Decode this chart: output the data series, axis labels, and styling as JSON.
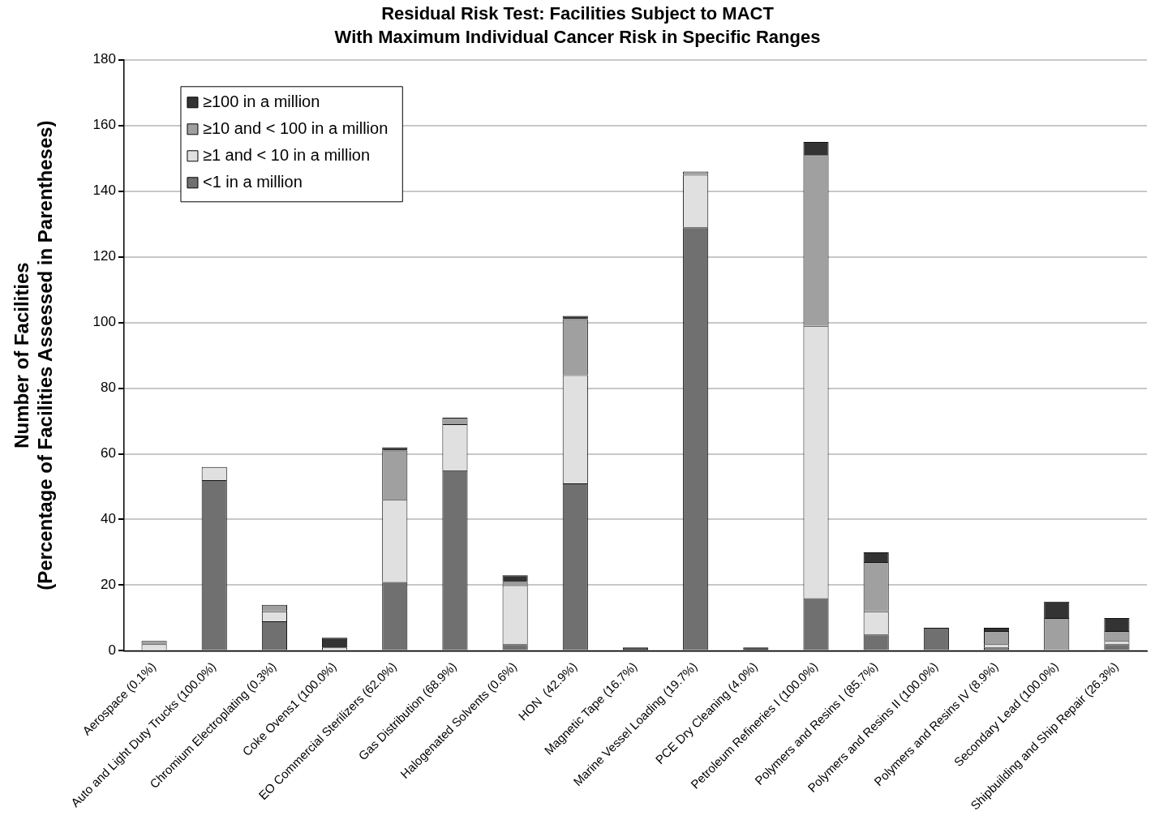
{
  "chart_data": {
    "type": "bar",
    "title": "Residual Risk Test: Facilities Subject to MACT",
    "subtitle": "With Maximum Individual Cancer Risk in Specific Ranges",
    "ylabel": "Number of Facilities\n(Percentage of Facilities Assessed in Parentheses)",
    "categories": [
      "Aerospace (0.1%)",
      "Auto and Light Duty Trucks (100.0%)",
      "Chromium Electroplating (0.3%)",
      "Coke Ovens1 (100.0%)",
      "EO Commercial Sterilizers (62.0%)",
      "Gas Distribution (68.9%)",
      "Halogenated Solvents (0.6%)",
      "HON  (42.9%)",
      "Magnetic Tape (16.7%)",
      "Marine Vessel Loading (19.7%)",
      "PCE Dry Cleaning (4.0%)",
      "Petroleum Refineries I (100.0%)",
      "Polymers and Resins I (85.7%)",
      "Polymers and Resins II (100.0%)",
      "Polymers and Resins IV (8.9%)",
      "Secondary Lead (100.0%)",
      "Shipbuilding and Ship Repair (26.3%)"
    ],
    "stacked": true,
    "series": [
      {
        "name": "<1 in a million",
        "color": "#707070",
        "values": [
          0,
          52,
          9,
          0,
          21,
          55,
          2,
          51,
          0,
          129,
          0,
          16,
          5,
          7,
          1,
          0,
          2
        ]
      },
      {
        "name": "≥1 and < 10 in a million",
        "color": "#e0e0e0",
        "values": [
          2,
          4,
          3,
          1,
          25,
          14,
          18,
          33,
          0,
          16,
          0,
          83,
          7,
          0,
          1,
          0,
          1
        ]
      },
      {
        "name": "≥10 and < 100 in a million",
        "color": "#a0a0a0",
        "values": [
          1,
          0,
          2,
          0,
          15,
          2,
          1,
          17,
          0,
          1,
          0,
          52,
          15,
          0,
          4,
          10,
          3
        ]
      },
      {
        "name": "≥100 in a million",
        "color": "#333333",
        "values": [
          0,
          0,
          0,
          3,
          1,
          0,
          2,
          1,
          1,
          0,
          1,
          4,
          3,
          0,
          1,
          5,
          4
        ]
      }
    ],
    "ylim": [
      0,
      180
    ],
    "yticks": [
      0,
      20,
      40,
      60,
      80,
      100,
      120,
      140,
      160,
      180
    ],
    "grid": "y",
    "legend": "top left"
  }
}
